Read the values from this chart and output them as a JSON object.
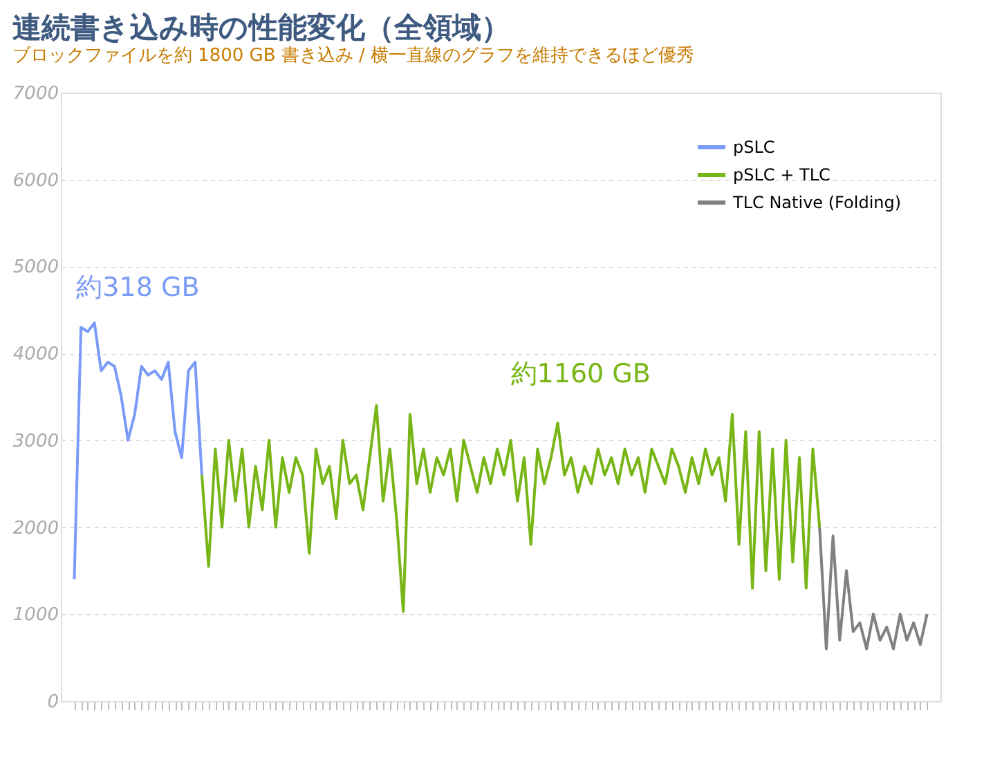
{
  "chart_data": {
    "type": "line",
    "title": "連続書き込み時の性能変化（全領域）",
    "subtitle": "ブロックファイルを約 1800 GB 書き込み / 横一直線のグラフを維持できるほど優秀",
    "categories": [
      null,
      null,
      null,
      null,
      null,
      null,
      null,
      null,
      null,
      null,
      null,
      null,
      null,
      null,
      null,
      null,
      null,
      null,
      null,
      null,
      null,
      null,
      null,
      null,
      null,
      null,
      null,
      null,
      null,
      null,
      null,
      null,
      null,
      null,
      null,
      null,
      null,
      null,
      null,
      null,
      null,
      null,
      null,
      null,
      null,
      null,
      null,
      null,
      null,
      null,
      null,
      null,
      null,
      null,
      null,
      null,
      null,
      null,
      null,
      null,
      null,
      null,
      null,
      null,
      null,
      null,
      null,
      null,
      null,
      null,
      null,
      null,
      null,
      null,
      null,
      null,
      null,
      null,
      null,
      null,
      null,
      null,
      null,
      null,
      null,
      null,
      null,
      null,
      null,
      null,
      null,
      null,
      null,
      null,
      null,
      null,
      null,
      null,
      null,
      null,
      null,
      null,
      null,
      null,
      null,
      null,
      null,
      null,
      null,
      null,
      null,
      null,
      null,
      null,
      null,
      null,
      null,
      null,
      null,
      null,
      null,
      null,
      null,
      null,
      null,
      null,
      null,
      null
    ],
    "series": [
      {
        "name": "pSLC",
        "color": "#7a9cf8",
        "values": [
          1400,
          4300,
          4250,
          4350,
          3800,
          3900,
          3850,
          3500,
          3000,
          3300,
          3850,
          3750,
          3800,
          3700,
          3900,
          3100,
          2800,
          3800,
          3900,
          2600,
          null,
          null,
          null,
          null,
          null,
          null,
          null,
          null,
          null,
          null,
          null,
          null,
          null,
          null,
          null,
          null,
          null,
          null,
          null,
          null,
          null,
          null,
          null,
          null,
          null,
          null,
          null,
          null,
          null,
          null,
          null,
          null,
          null,
          null,
          null,
          null,
          null,
          null,
          null,
          null,
          null,
          null,
          null,
          null,
          null,
          null,
          null,
          null,
          null,
          null,
          null,
          null,
          null,
          null,
          null,
          null,
          null,
          null,
          null,
          null,
          null,
          null,
          null,
          null,
          null,
          null,
          null,
          null,
          null,
          null,
          null,
          null,
          null,
          null,
          null,
          null,
          null,
          null,
          null,
          null,
          null,
          null,
          null,
          null,
          null,
          null,
          null,
          null,
          null,
          null,
          null,
          null,
          null,
          null,
          null,
          null,
          null,
          null,
          null,
          null,
          null,
          null,
          null,
          null,
          null,
          null,
          null,
          null
        ]
      },
      {
        "name": "pSLC + TLC",
        "color": "#78b516",
        "values": [
          null,
          null,
          null,
          null,
          null,
          null,
          null,
          null,
          null,
          null,
          null,
          null,
          null,
          null,
          null,
          null,
          null,
          null,
          null,
          2600,
          1550,
          2900,
          2000,
          3000,
          2300,
          2900,
          2000,
          2700,
          2200,
          3000,
          2000,
          2800,
          2400,
          2800,
          2600,
          1700,
          2900,
          2500,
          2700,
          2100,
          3000,
          2500,
          2600,
          2200,
          2800,
          3400,
          2300,
          2900,
          2100,
          1030,
          3300,
          2500,
          2900,
          2400,
          2800,
          2600,
          2900,
          2300,
          3000,
          2700,
          2400,
          2800,
          2500,
          2900,
          2600,
          3000,
          2300,
          2800,
          1800,
          2900,
          2500,
          2800,
          3200,
          2600,
          2800,
          2400,
          2700,
          2500,
          2900,
          2600,
          2800,
          2500,
          2900,
          2600,
          2800,
          2400,
          2900,
          2700,
          2500,
          2900,
          2700,
          2400,
          2800,
          2500,
          2900,
          2600,
          2800,
          2300,
          3300,
          1800,
          3100,
          1300,
          3100,
          1500,
          2900,
          1400,
          3000,
          1600,
          2800,
          1300,
          2900,
          2000,
          null,
          null,
          null,
          null,
          null,
          null,
          null,
          null,
          null,
          null,
          null,
          null,
          null,
          null,
          null,
          null
        ]
      },
      {
        "name": "TLC Native (Folding)",
        "color": "#808080",
        "values": [
          null,
          null,
          null,
          null,
          null,
          null,
          null,
          null,
          null,
          null,
          null,
          null,
          null,
          null,
          null,
          null,
          null,
          null,
          null,
          null,
          null,
          null,
          null,
          null,
          null,
          null,
          null,
          null,
          null,
          null,
          null,
          null,
          null,
          null,
          null,
          null,
          null,
          null,
          null,
          null,
          null,
          null,
          null,
          null,
          null,
          null,
          null,
          null,
          null,
          null,
          null,
          null,
          null,
          null,
          null,
          null,
          null,
          null,
          null,
          null,
          null,
          null,
          null,
          null,
          null,
          null,
          null,
          null,
          null,
          null,
          null,
          null,
          null,
          null,
          null,
          null,
          null,
          null,
          null,
          null,
          null,
          null,
          null,
          null,
          null,
          null,
          null,
          null,
          null,
          null,
          null,
          null,
          null,
          null,
          null,
          null,
          null,
          null,
          null,
          null,
          null,
          null,
          null,
          null,
          null,
          null,
          null,
          null,
          null,
          null,
          null,
          2000,
          600,
          1900,
          700,
          1500,
          800,
          900,
          600,
          1000,
          700,
          850,
          600,
          1000,
          700,
          900,
          650,
          1000
        ]
      }
    ],
    "annotations": [
      "約318 GB",
      "約1160 GB"
    ],
    "ylim": [
      0,
      7000
    ],
    "yticks": [
      0,
      1000,
      2000,
      3000,
      4000,
      5000,
      6000,
      7000
    ],
    "grid": "y",
    "legend": "top right",
    "tick_labels": "y",
    "line_style": "solid",
    "marker": "none"
  }
}
